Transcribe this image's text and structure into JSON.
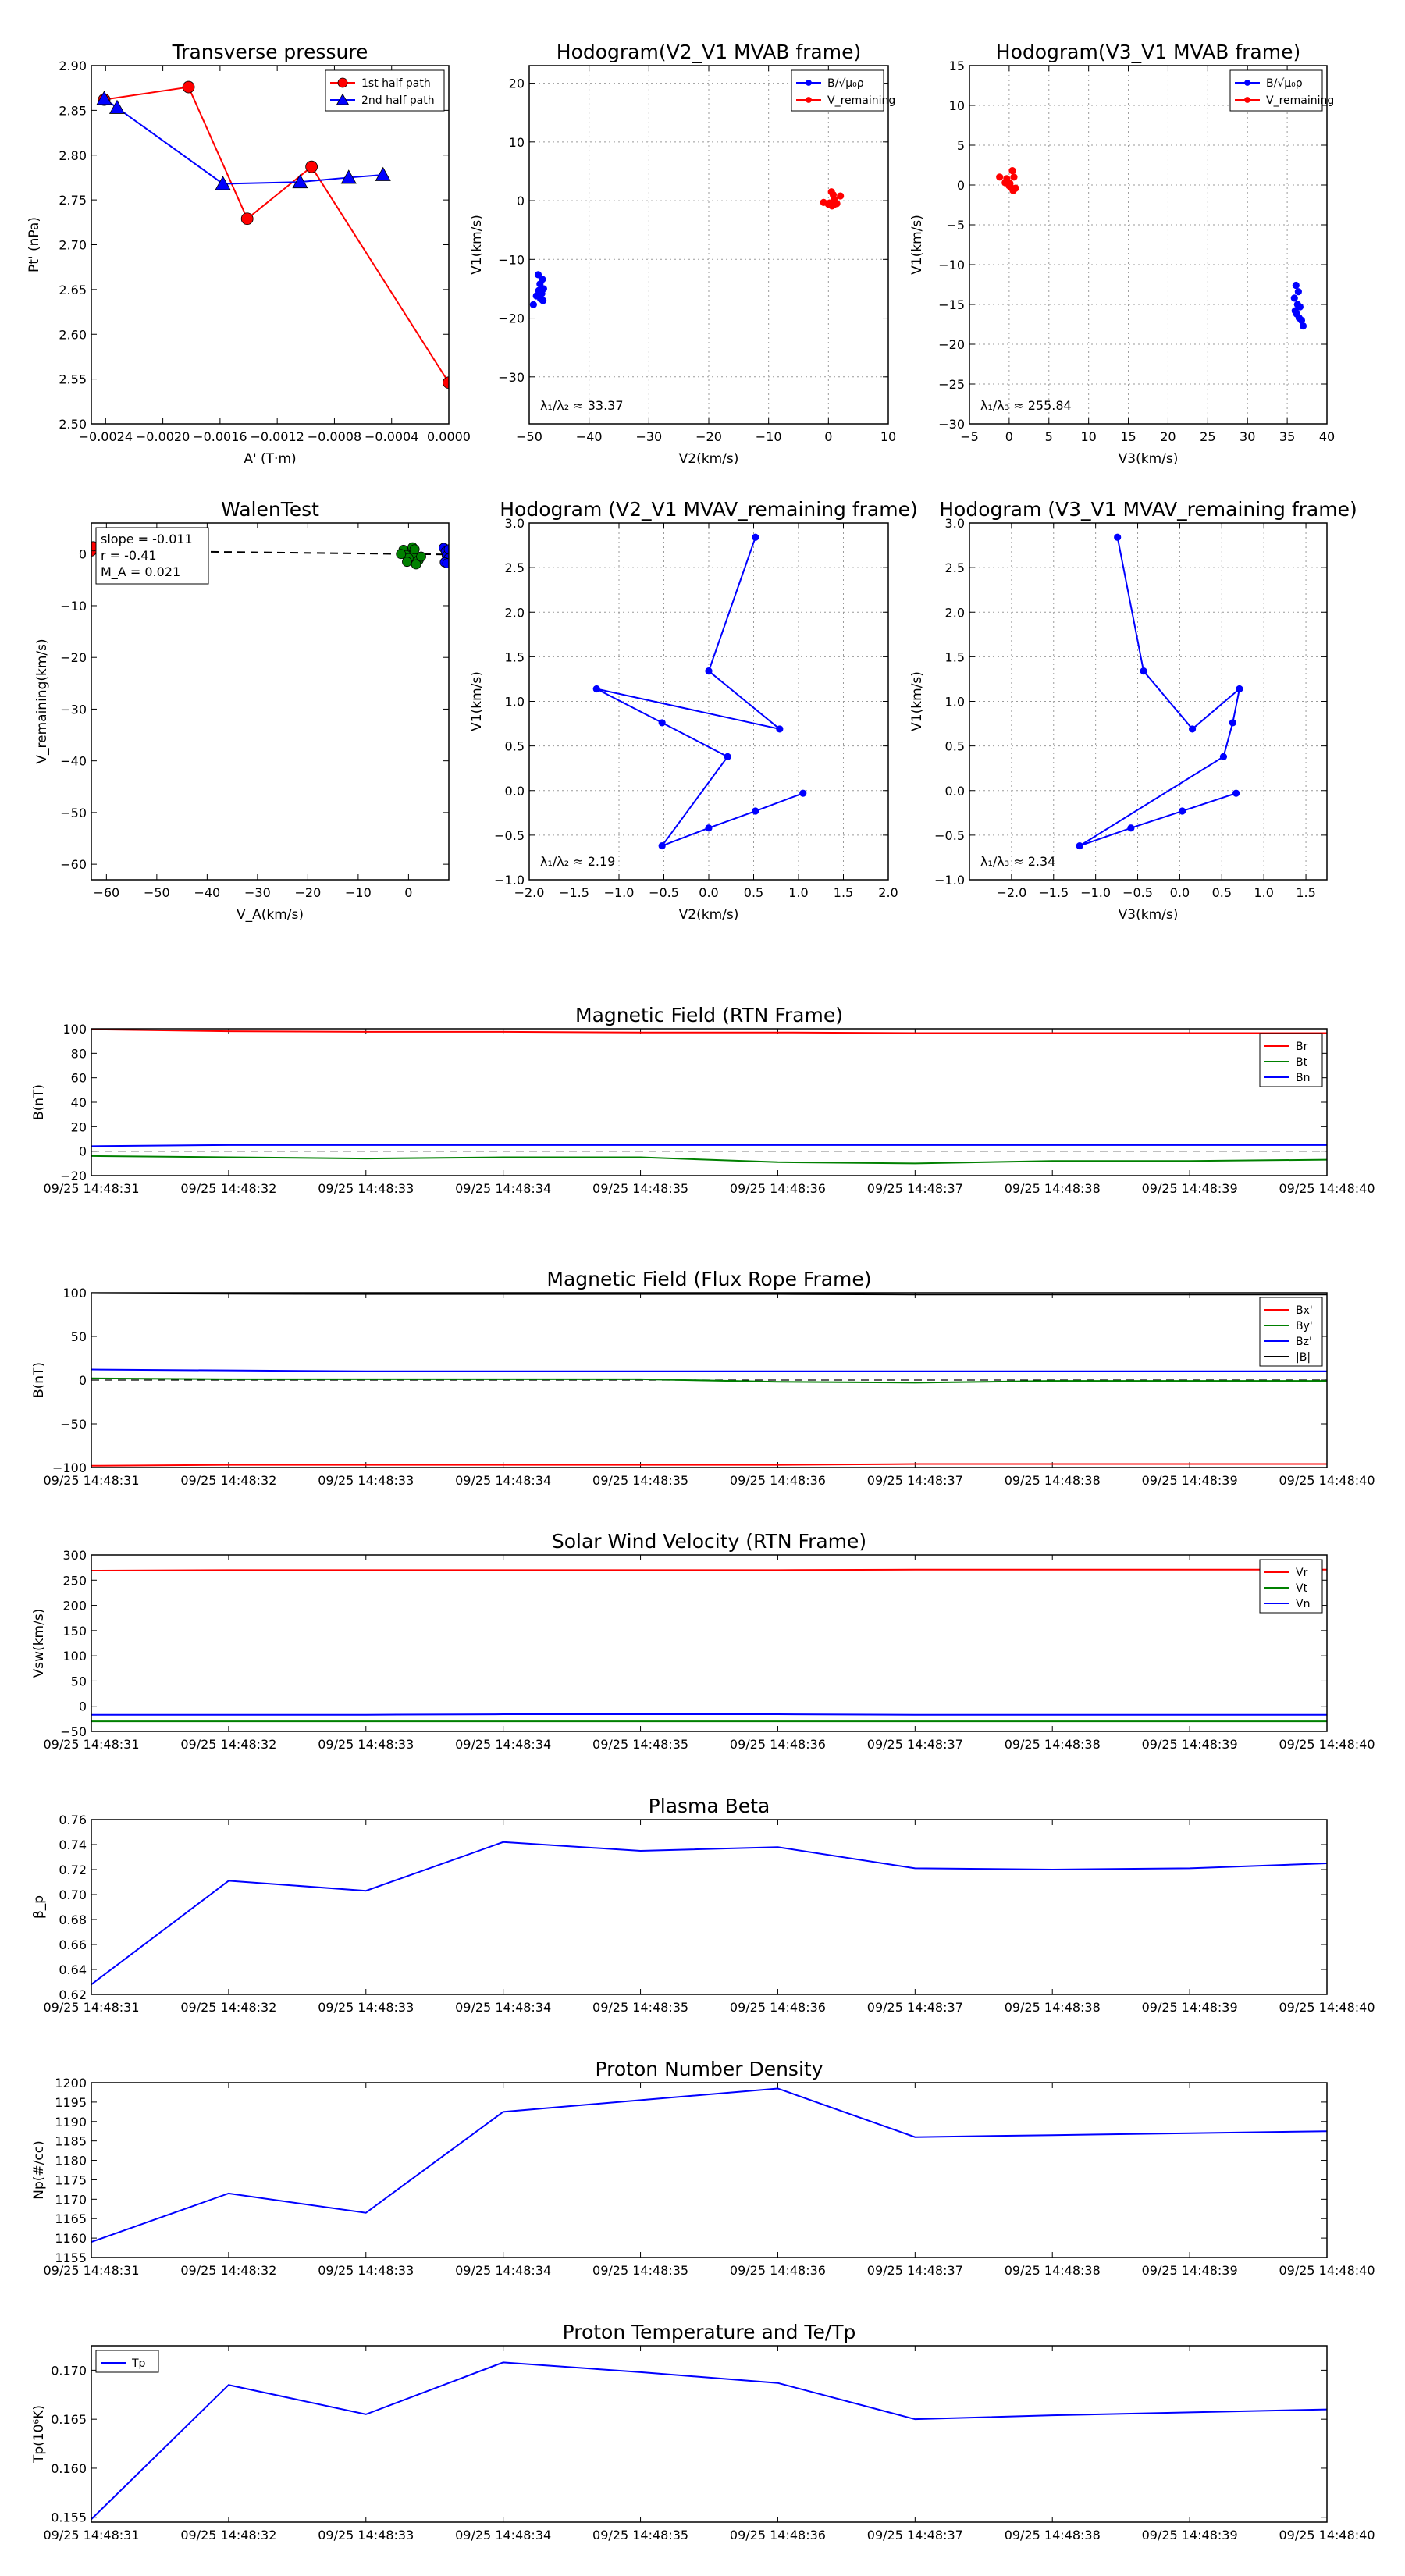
{
  "figure": {
    "kind": "flux rope analysis figure"
  },
  "chart_data": [
    {
      "id": "p1",
      "type": "line",
      "title": "Transverse pressure",
      "xlabel": "A' (T·m)",
      "ylabel": "Pt' (nPa)",
      "xlim": [
        -0.0025,
        0.0
      ],
      "ylim": [
        2.5,
        2.9
      ],
      "xticks": [
        -0.0024,
        -0.002,
        -0.0016,
        -0.0012,
        -0.0008,
        -0.0004,
        0.0
      ],
      "xticklabels": [
        "−0.0024",
        "−0.0020",
        "−0.0016",
        "−0.0012",
        "−0.0008",
        "−0.0004",
        "0.0000"
      ],
      "yticks": [
        2.5,
        2.55,
        2.6,
        2.65,
        2.7,
        2.75,
        2.8,
        2.85,
        2.9
      ],
      "yticklabels": [
        "2.50",
        "2.55",
        "2.60",
        "2.65",
        "2.70",
        "2.75",
        "2.80",
        "2.85",
        "2.90"
      ],
      "grid": false,
      "legend_position": "top-right",
      "series": [
        {
          "name": "1st half path",
          "color": "#ff0000",
          "marker": "circle",
          "x": [
            -0.00241,
            -0.00182,
            -0.00141,
            -0.00096,
            0.0
          ],
          "y": [
            2.862,
            2.876,
            2.729,
            2.787,
            2.546
          ]
        },
        {
          "name": "2nd half path",
          "color": "#0000ff",
          "marker": "triangle",
          "x": [
            -0.00241,
            -0.00232,
            -0.00158,
            -0.00104,
            -0.0007,
            -0.00046
          ],
          "y": [
            2.863,
            2.853,
            2.768,
            2.77,
            2.775,
            2.778
          ]
        }
      ]
    },
    {
      "id": "p2",
      "type": "scatter",
      "title": "Hodogram(V2_V1 MVAB frame)",
      "xlabel": "V2(km/s)",
      "ylabel": "V1(km/s)",
      "xlim": [
        -50,
        10
      ],
      "ylim": [
        -38,
        23
      ],
      "xticks": [
        -50,
        -40,
        -30,
        -20,
        -10,
        0,
        10
      ],
      "xticklabels": [
        "−50",
        "−40",
        "−30",
        "−20",
        "−10",
        "0",
        "10"
      ],
      "yticks": [
        -30,
        -20,
        -10,
        0,
        10,
        20
      ],
      "yticklabels": [
        "−30",
        "−20",
        "−10",
        "0",
        "10",
        "20"
      ],
      "grid": true,
      "legend_position": "top-right",
      "annotation": "λ₁/λ₂ ≈ 33.37",
      "series": [
        {
          "name": "B/√μ₀ρ",
          "color": "#0000ff",
          "marker": "circle",
          "x": [
            -48.5,
            -47.8,
            -48.2,
            -47.6,
            -48.4,
            -47.9,
            -48.8,
            -48.1,
            -47.7,
            -49.3
          ],
          "y": [
            -12.6,
            -13.4,
            -14.2,
            -15.0,
            -15.3,
            -15.8,
            -16.2,
            -16.7,
            -17.0,
            -17.7
          ]
        },
        {
          "name": "V_remaining",
          "color": "#ff0000",
          "marker": "circle",
          "x": [
            0.5,
            0.8,
            1.0,
            2.0,
            -0.8,
            0.0,
            0.6,
            1.4,
            0.2,
            0.9
          ],
          "y": [
            1.5,
            1.0,
            0.2,
            0.8,
            -0.3,
            -0.6,
            -0.9,
            -0.5,
            -0.4,
            -0.7
          ]
        }
      ]
    },
    {
      "id": "p3",
      "type": "scatter",
      "title": "Hodogram(V3_V1 MVAB frame)",
      "xlabel": "V3(km/s)",
      "ylabel": "V1(km/s)",
      "xlim": [
        -5,
        40
      ],
      "ylim": [
        -30,
        15
      ],
      "xticks": [
        -5,
        0,
        5,
        10,
        15,
        20,
        25,
        30,
        35,
        40
      ],
      "xticklabels": [
        "−5",
        "0",
        "5",
        "10",
        "15",
        "20",
        "25",
        "30",
        "35",
        "40"
      ],
      "yticks": [
        -30,
        -25,
        -20,
        -15,
        -10,
        -5,
        0,
        5,
        10,
        15
      ],
      "yticklabels": [
        "−30",
        "−25",
        "−20",
        "−15",
        "−10",
        "−5",
        "0",
        "5",
        "10",
        "15"
      ],
      "grid": true,
      "legend_position": "top-right",
      "annotation": "λ₁/λ₃ ≈ 255.84",
      "series": [
        {
          "name": "B/√μ₀ρ",
          "color": "#0000ff",
          "marker": "circle",
          "x": [
            36.1,
            36.4,
            35.9,
            36.3,
            36.6,
            36.0,
            36.2,
            36.5,
            36.8,
            37.0
          ],
          "y": [
            -12.6,
            -13.4,
            -14.2,
            -15.0,
            -15.3,
            -15.8,
            -16.2,
            -16.7,
            -17.0,
            -17.7
          ]
        },
        {
          "name": "V_remaining",
          "color": "#ff0000",
          "marker": "circle",
          "x": [
            0.4,
            0.6,
            -0.3,
            -1.2,
            -0.5,
            0.0,
            0.2,
            0.8,
            0.5,
            0.1
          ],
          "y": [
            1.8,
            1.0,
            0.8,
            1.0,
            0.3,
            -0.1,
            -0.3,
            -0.4,
            -0.7,
            0.2
          ]
        }
      ]
    },
    {
      "id": "p4",
      "type": "scatter",
      "title": "WalenTest",
      "xlabel": "V_A(km/s)",
      "ylabel": "V_remaining(km/s)",
      "xlim": [
        -63,
        8
      ],
      "ylim": [
        -63,
        6
      ],
      "xticks": [
        -60,
        -50,
        -40,
        -30,
        -20,
        -10,
        0
      ],
      "xticklabels": [
        "−60",
        "−50",
        "−40",
        "−30",
        "−20",
        "−10",
        "0"
      ],
      "yticks": [
        -60,
        -50,
        -40,
        -30,
        -20,
        -10,
        0
      ],
      "yticklabels": [
        "−60",
        "−50",
        "−40",
        "−30",
        "−20",
        "−10",
        "0"
      ],
      "grid": false,
      "legend_lines": [
        "slope = -0.011",
        "r = -0.41",
        "M_A = 0.021"
      ],
      "fit_line": {
        "slope": -0.011,
        "intercept": 0.0
      },
      "series": [
        {
          "name": "",
          "color": "#ff0000",
          "x": [
            -63,
            -62.6
          ],
          "y": [
            0.5,
            1.5
          ]
        },
        {
          "name": "",
          "color": "#008000",
          "x": [
            -1.0,
            0.5,
            -0.5,
            1.0,
            2.0,
            1.5,
            0.0,
            -1.5,
            0.8,
            2.5,
            1.2,
            -0.3
          ],
          "y": [
            0.8,
            0.4,
            -0.2,
            -0.6,
            -1.2,
            -2.0,
            -0.8,
            0.0,
            1.3,
            -0.5,
            0.9,
            -1.5
          ]
        },
        {
          "name": "",
          "color": "#0000ff",
          "x": [
            7.0,
            7.4,
            7.6,
            7.9,
            7.2,
            7.7,
            8.0
          ],
          "y": [
            1.2,
            0.5,
            -0.3,
            -0.9,
            -1.6,
            -1.8,
            0.9
          ]
        }
      ]
    },
    {
      "id": "p5",
      "type": "line",
      "title": "Hodogram (V2_V1 MVAV_remaining frame)",
      "xlabel": "V2(km/s)",
      "ylabel": "V1(km/s)",
      "xlim": [
        -2.0,
        2.0
      ],
      "ylim": [
        -1.0,
        3.0
      ],
      "xticks": [
        -2,
        -1.5,
        -1,
        -0.5,
        0,
        0.5,
        1,
        1.5,
        2
      ],
      "xticklabels": [
        "−2.0",
        "−1.5",
        "−1.0",
        "−0.5",
        "0.0",
        "0.5",
        "1.0",
        "1.5",
        "2.0"
      ],
      "yticks": [
        -1,
        -0.5,
        0,
        0.5,
        1,
        1.5,
        2,
        2.5,
        3
      ],
      "yticklabels": [
        "−1.0",
        "−0.5",
        "0.0",
        "0.5",
        "1.0",
        "1.5",
        "2.0",
        "2.5",
        "3.0"
      ],
      "grid": true,
      "annotation": "λ₁/λ₂ ≈ 2.19",
      "series": [
        {
          "name": "",
          "color": "#0000ff",
          "marker": "circle",
          "x": [
            0.52,
            0.0,
            0.79,
            -1.25,
            -0.52,
            0.21,
            -0.52,
            0.0,
            0.52,
            1.05
          ],
          "y": [
            2.84,
            1.34,
            0.69,
            1.14,
            0.76,
            0.38,
            -0.62,
            -0.42,
            -0.23,
            -0.03
          ]
        }
      ]
    },
    {
      "id": "p6",
      "type": "line",
      "title": "Hodogram (V3_V1 MVAV_remaining frame)",
      "xlabel": "V3(km/s)",
      "ylabel": "V1(km/s)",
      "xlim": [
        -2.5,
        1.75
      ],
      "ylim": [
        -1.0,
        3.0
      ],
      "xticks": [
        -2,
        -1.5,
        -1,
        -0.5,
        0,
        0.5,
        1,
        1.5
      ],
      "xticklabels": [
        "−2.0",
        "−1.5",
        "−1.0",
        "−0.5",
        "0.0",
        "0.5",
        "1.0",
        "1.5"
      ],
      "yticks": [
        -1,
        -0.5,
        0,
        0.5,
        1,
        1.5,
        2,
        2.5,
        3
      ],
      "yticklabels": [
        "−1.0",
        "−0.5",
        "0.0",
        "0.5",
        "1.0",
        "1.5",
        "2.0",
        "2.5",
        "3.0"
      ],
      "grid": true,
      "annotation": "λ₁/λ₃ ≈ 2.34",
      "series": [
        {
          "name": "",
          "color": "#0000ff",
          "marker": "circle",
          "x": [
            -0.74,
            -0.43,
            0.15,
            0.71,
            0.63,
            0.52,
            -1.19,
            -0.58,
            0.03,
            0.67
          ],
          "y": [
            2.84,
            1.34,
            0.69,
            1.14,
            0.76,
            0.38,
            -0.62,
            -0.42,
            -0.23,
            -0.03
          ]
        }
      ]
    },
    {
      "id": "ts1",
      "type": "line",
      "title": "Magnetic Field (RTN Frame)",
      "ylabel": "B(nT)",
      "ylim": [
        -20,
        100
      ],
      "yticks": [
        -20,
        0,
        20,
        40,
        60,
        80,
        100
      ],
      "yticklabels": [
        "−20",
        "0",
        "20",
        "40",
        "60",
        "80",
        "100"
      ],
      "categories": [
        "09/25 14:48:31",
        "09/25 14:48:32",
        "09/25 14:48:33",
        "09/25 14:48:34",
        "09/25 14:48:35",
        "09/25 14:48:36",
        "09/25 14:48:37",
        "09/25 14:48:38",
        "09/25 14:48:39",
        "09/25 14:48:40"
      ],
      "zero_line": true,
      "legend_position": "right",
      "series": [
        {
          "name": "Br",
          "color": "#ff0000",
          "values": [
            99.5,
            98.0,
            97.5,
            97.5,
            97.0,
            97.0,
            96.5,
            96.5,
            96.5,
            96.5
          ]
        },
        {
          "name": "Bt",
          "color": "#008000",
          "values": [
            -4,
            -5,
            -6,
            -5,
            -5,
            -9,
            -10,
            -8,
            -8,
            -7
          ]
        },
        {
          "name": "Bn",
          "color": "#0000ff",
          "values": [
            4,
            5,
            5,
            5,
            5,
            5,
            5,
            5,
            5,
            5
          ]
        }
      ]
    },
    {
      "id": "ts2",
      "type": "line",
      "title": "Magnetic Field (Flux Rope Frame)",
      "ylabel": "B(nT)",
      "ylim": [
        -100,
        100
      ],
      "yticks": [
        -100,
        -50,
        0,
        50,
        100
      ],
      "yticklabels": [
        "−100",
        "−50",
        "0",
        "50",
        "100"
      ],
      "categories": [
        "09/25 14:48:31",
        "09/25 14:48:32",
        "09/25 14:48:33",
        "09/25 14:48:34",
        "09/25 14:48:35",
        "09/25 14:48:36",
        "09/25 14:48:37",
        "09/25 14:48:38",
        "09/25 14:48:39",
        "09/25 14:48:40"
      ],
      "zero_line": true,
      "legend_position": "right",
      "series": [
        {
          "name": "Bx'",
          "color": "#ff0000",
          "values": [
            -98,
            -97,
            -97,
            -97,
            -97,
            -97,
            -96,
            -96,
            -96,
            -96
          ]
        },
        {
          "name": "By'",
          "color": "#008000",
          "values": [
            2,
            1,
            1,
            1,
            1,
            -2,
            -3,
            -1,
            -1,
            -1
          ]
        },
        {
          "name": "Bz'",
          "color": "#0000ff",
          "values": [
            12,
            11,
            10,
            10,
            10,
            10,
            10,
            10,
            10,
            10
          ]
        },
        {
          "name": "|B|",
          "color": "#000000",
          "values": [
            99.5,
            98.9,
            98.5,
            98.5,
            98.5,
            98.5,
            98.0,
            98.0,
            98.0,
            98.0
          ]
        }
      ]
    },
    {
      "id": "ts3",
      "type": "line",
      "title": "Solar Wind Velocity (RTN Frame)",
      "ylabel": "Vsw(km/s)",
      "ylim": [
        -50,
        300
      ],
      "yticks": [
        -50,
        0,
        50,
        100,
        150,
        200,
        250,
        300
      ],
      "yticklabels": [
        "−50",
        "0",
        "50",
        "100",
        "150",
        "200",
        "250",
        "300"
      ],
      "categories": [
        "09/25 14:48:31",
        "09/25 14:48:32",
        "09/25 14:48:33",
        "09/25 14:48:34",
        "09/25 14:48:35",
        "09/25 14:48:36",
        "09/25 14:48:37",
        "09/25 14:48:38",
        "09/25 14:48:39",
        "09/25 14:48:40"
      ],
      "legend_position": "right",
      "series": [
        {
          "name": "Vr",
          "color": "#ff0000",
          "values": [
            269,
            270,
            270,
            270,
            270,
            270,
            271,
            271,
            271,
            271
          ]
        },
        {
          "name": "Vt",
          "color": "#008000",
          "values": [
            -30,
            -30,
            -30,
            -30,
            -30,
            -30,
            -30,
            -30,
            -30,
            -30
          ]
        },
        {
          "name": "Vn",
          "color": "#0000ff",
          "values": [
            -17,
            -17,
            -17,
            -16,
            -16,
            -16,
            -17,
            -17,
            -17,
            -17
          ]
        }
      ]
    },
    {
      "id": "ts4",
      "type": "line",
      "title": "Plasma Beta",
      "ylabel": "β_p",
      "ylim": [
        0.62,
        0.76
      ],
      "yticks": [
        0.62,
        0.64,
        0.66,
        0.68,
        0.7,
        0.72,
        0.74,
        0.76
      ],
      "yticklabels": [
        "0.62",
        "0.64",
        "0.66",
        "0.68",
        "0.70",
        "0.72",
        "0.74",
        "0.76"
      ],
      "categories": [
        "09/25 14:48:31",
        "09/25 14:48:32",
        "09/25 14:48:33",
        "09/25 14:48:34",
        "09/25 14:48:35",
        "09/25 14:48:36",
        "09/25 14:48:37",
        "09/25 14:48:38",
        "09/25 14:48:39",
        "09/25 14:48:40"
      ],
      "series": [
        {
          "name": "",
          "color": "#0000ff",
          "values": [
            0.628,
            0.711,
            0.703,
            0.742,
            0.735,
            0.738,
            0.721,
            0.72,
            0.721,
            0.725
          ]
        }
      ]
    },
    {
      "id": "ts5",
      "type": "line",
      "title": "Proton Number Density",
      "ylabel": "Np(#/cc)",
      "ylim": [
        1155,
        1200
      ],
      "yticks": [
        1155,
        1160,
        1165,
        1170,
        1175,
        1180,
        1185,
        1190,
        1195,
        1200
      ],
      "yticklabels": [
        "1155",
        "1160",
        "1165",
        "1170",
        "1175",
        "1180",
        "1185",
        "1190",
        "1195",
        "1200"
      ],
      "categories": [
        "09/25 14:48:31",
        "09/25 14:48:32",
        "09/25 14:48:33",
        "09/25 14:48:34",
        "09/25 14:48:35",
        "09/25 14:48:36",
        "09/25 14:48:37",
        "09/25 14:48:38",
        "09/25 14:48:39",
        "09/25 14:48:40"
      ],
      "series": [
        {
          "name": "",
          "color": "#0000ff",
          "values": [
            1159,
            1171.5,
            1166.5,
            1192.5,
            1195.5,
            1198.5,
            1186,
            1186.5,
            1187,
            1187.5
          ]
        }
      ]
    },
    {
      "id": "ts6",
      "type": "line",
      "title": "Proton Temperature and Te/Tp",
      "ylabel": "Tp(10⁶K)",
      "ylim": [
        0.1545,
        0.1725
      ],
      "yticks": [
        0.155,
        0.16,
        0.165,
        0.17
      ],
      "yticklabels": [
        "0.155",
        "0.160",
        "0.165",
        "0.170"
      ],
      "categories": [
        "09/25 14:48:31",
        "09/25 14:48:32",
        "09/25 14:48:33",
        "09/25 14:48:34",
        "09/25 14:48:35",
        "09/25 14:48:36",
        "09/25 14:48:37",
        "09/25 14:48:38",
        "09/25 14:48:39",
        "09/25 14:48:40"
      ],
      "legend_position": "top-left",
      "series": [
        {
          "name": "Tp",
          "color": "#0000ff",
          "values": [
            0.1548,
            0.1685,
            0.1655,
            0.1708,
            0.1698,
            0.1687,
            0.165,
            0.1654,
            0.1657,
            0.166
          ]
        }
      ]
    }
  ]
}
